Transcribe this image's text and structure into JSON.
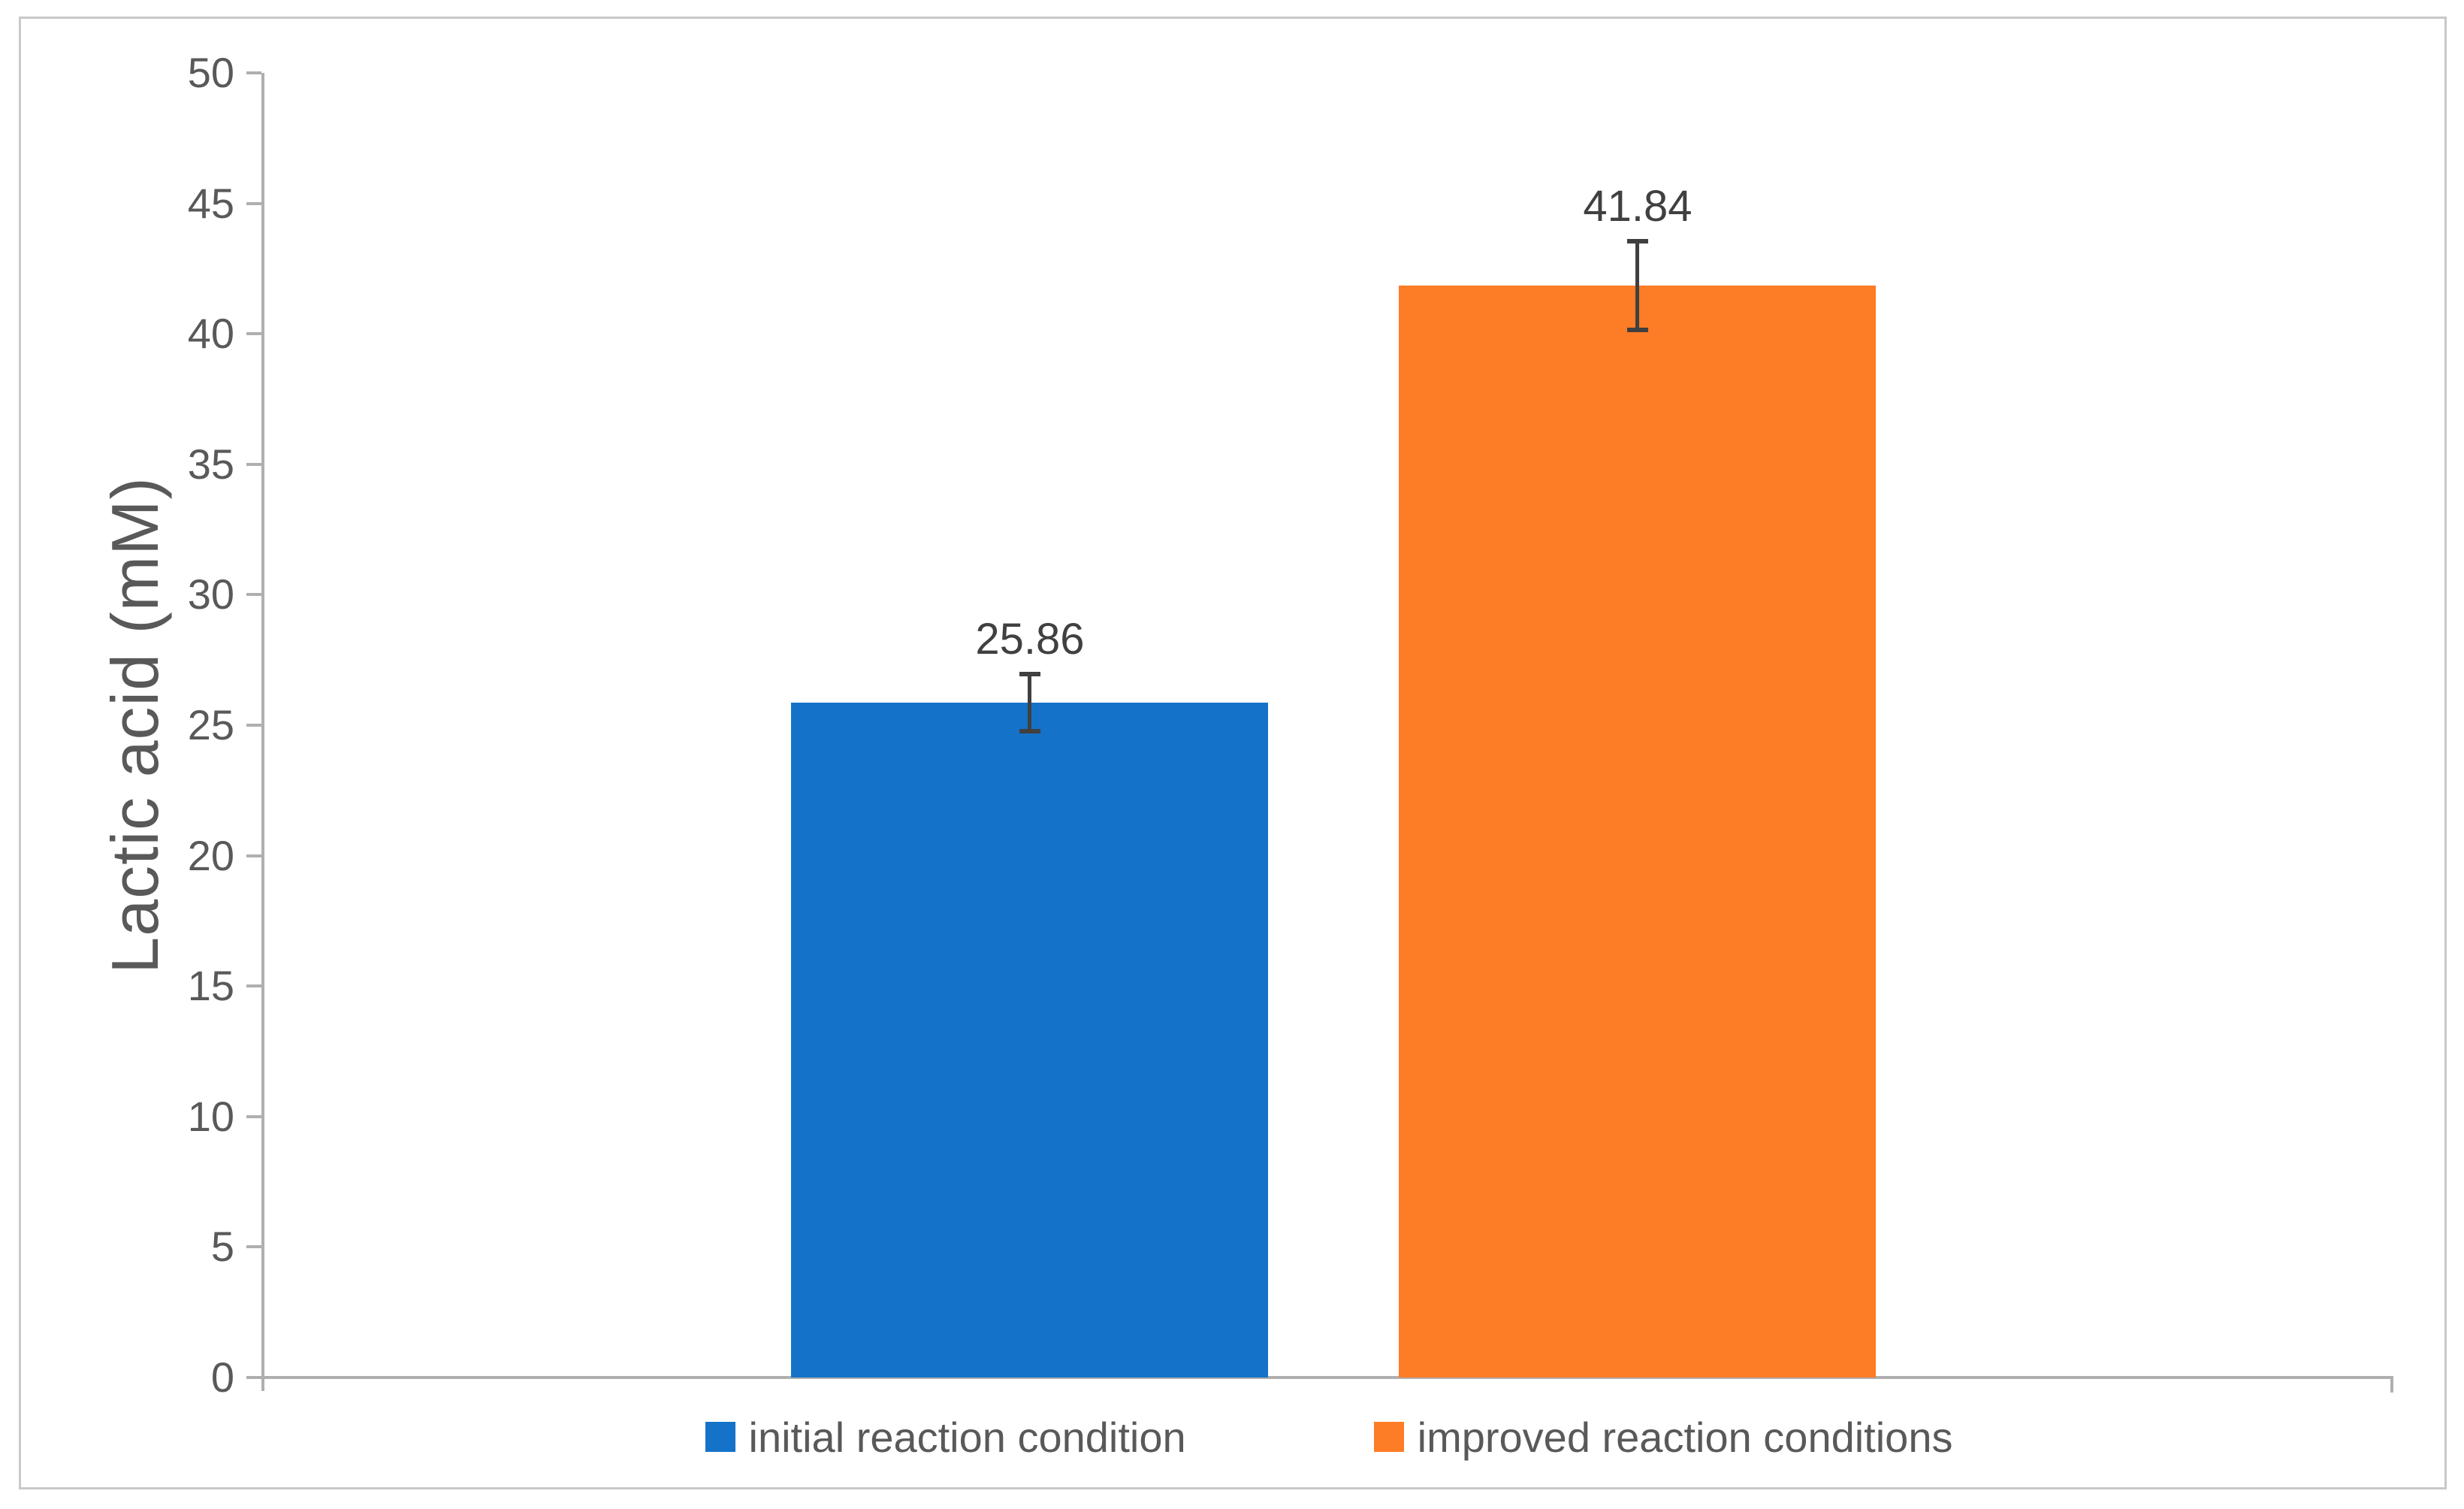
{
  "figure": {
    "background": "#FFFFFF",
    "border_color": "#C9C9C9"
  },
  "chart_data": {
    "type": "bar",
    "title": "",
    "xlabel": "",
    "ylabel": "Lactic acid (mM)",
    "ylim": [
      0,
      50
    ],
    "ytick_step": 5,
    "yticks": [
      "0",
      "5",
      "10",
      "15",
      "20",
      "25",
      "30",
      "35",
      "40",
      "45",
      "50"
    ],
    "grid": false,
    "legend_position": "bottom",
    "categories": [
      "initial reaction condition",
      "improved reaction conditions"
    ],
    "series": [
      {
        "name": "initial reaction condition",
        "value": 25.86,
        "data_label": "25.86",
        "error": 1.1,
        "color": "#1572C9"
      },
      {
        "name": "improved reaction conditions",
        "value": 41.84,
        "data_label": "41.84",
        "error": 1.7,
        "color": "#FD7C26"
      }
    ],
    "axis_color": "#AFAFAF",
    "tick_text_color": "#595959",
    "data_label_color": "#404040",
    "error_bar_color": "#404040"
  }
}
